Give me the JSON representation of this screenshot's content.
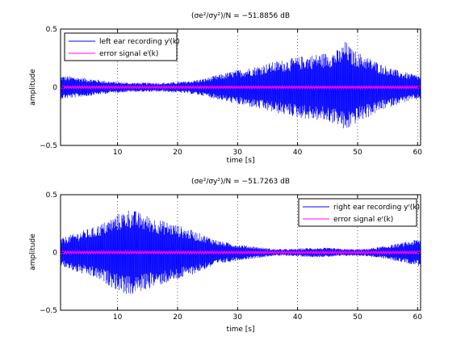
{
  "chart_data": [
    {
      "type": "line",
      "title": "(σe²/σy²)/N = −51.8856 dB",
      "xlabel": "time [s]",
      "ylabel": "amplitude",
      "xlim": [
        0.5,
        60.5
      ],
      "ylim": [
        -0.5,
        0.5
      ],
      "xticks": [
        10,
        20,
        30,
        40,
        50,
        60
      ],
      "yticks": [
        -0.5,
        0,
        0.5
      ],
      "grid": true,
      "legend_position": "top-left",
      "series": [
        {
          "name": "left ear recording yˡ(k)",
          "color": "#0000ff",
          "envelope_x": [
            0.5,
            3,
            6,
            9,
            12,
            15,
            18,
            21,
            24,
            27,
            30,
            33,
            36,
            39,
            42,
            45,
            47,
            48,
            49,
            51,
            54,
            57,
            60.5
          ],
          "envelope_y": [
            0.1,
            0.09,
            0.07,
            0.05,
            0.04,
            0.04,
            0.04,
            0.05,
            0.07,
            0.11,
            0.15,
            0.18,
            0.22,
            0.25,
            0.28,
            0.3,
            0.33,
            0.4,
            0.33,
            0.28,
            0.2,
            0.14,
            0.1
          ]
        },
        {
          "name": "error signal eˡ(k)",
          "color": "#ff00ff",
          "envelope_x": [
            0.5,
            60.5
          ],
          "envelope_y": [
            0.008,
            0.008
          ]
        }
      ]
    },
    {
      "type": "line",
      "title": "(σe²/σy²)/N = −51.7263 dB",
      "xlabel": "time [s]",
      "ylabel": "amplitude",
      "xlim": [
        0.5,
        60.5
      ],
      "ylim": [
        -0.5,
        0.5
      ],
      "xticks": [
        10,
        20,
        30,
        40,
        50,
        60
      ],
      "yticks": [
        -0.5,
        0,
        0.5
      ],
      "grid": true,
      "legend_position": "top-right",
      "series": [
        {
          "name": "right ear recording yʳ(k)",
          "color": "#0000ff",
          "envelope_x": [
            0.5,
            3,
            6,
            8,
            10,
            12,
            14,
            16,
            18,
            20,
            22,
            24,
            27,
            30,
            33,
            36,
            39,
            42,
            45,
            48,
            51,
            54,
            57,
            60.5
          ],
          "envelope_y": [
            0.12,
            0.17,
            0.22,
            0.27,
            0.33,
            0.38,
            0.34,
            0.3,
            0.27,
            0.24,
            0.2,
            0.16,
            0.1,
            0.07,
            0.05,
            0.03,
            0.03,
            0.04,
            0.04,
            0.03,
            0.03,
            0.05,
            0.08,
            0.12
          ]
        },
        {
          "name": "error signal eʳ(k)",
          "color": "#ff00ff",
          "envelope_x": [
            0.5,
            60.5
          ],
          "envelope_y": [
            0.008,
            0.008
          ]
        }
      ]
    }
  ]
}
